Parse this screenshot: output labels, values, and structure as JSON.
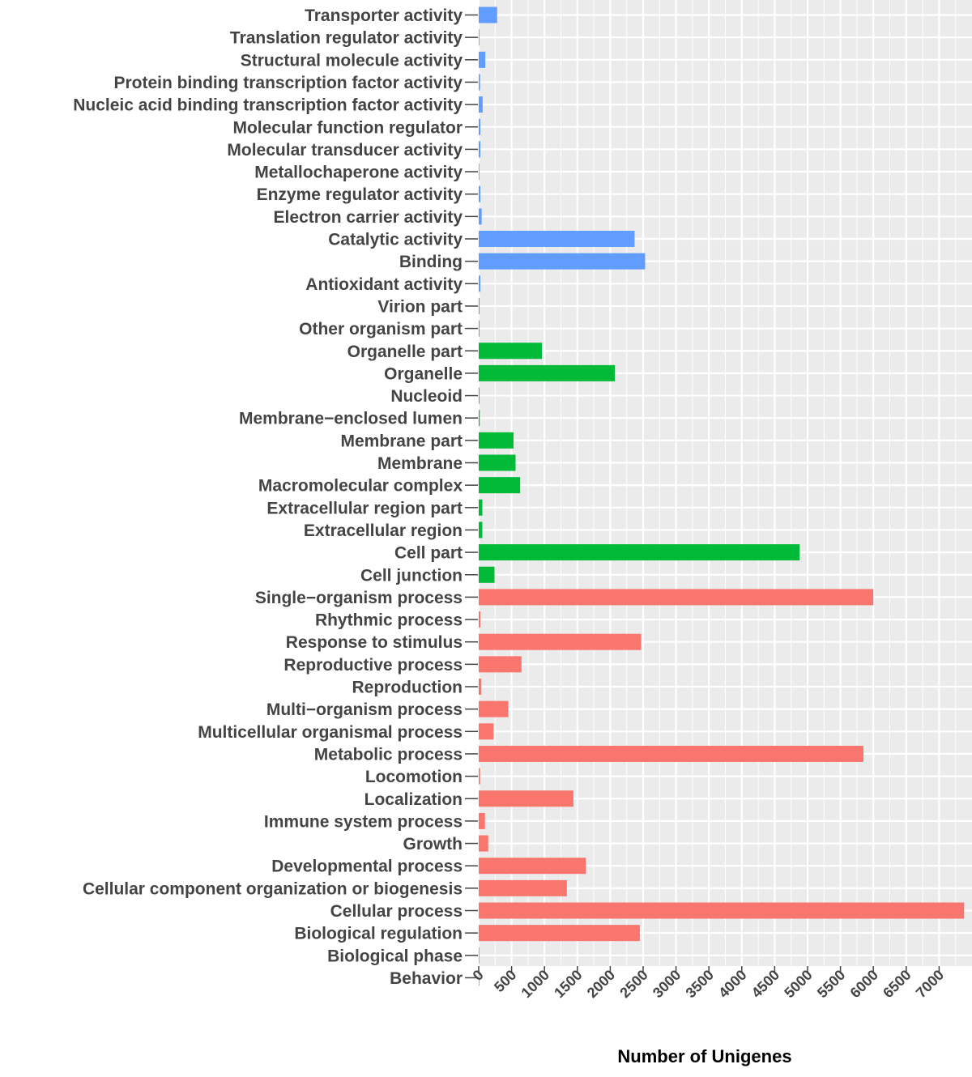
{
  "chart_data": {
    "type": "bar",
    "orientation": "horizontal",
    "title": "",
    "xlabel": "Number of Unigenes",
    "ylabel": "",
    "xlim": [
      0,
      7400
    ],
    "xticks": [
      0,
      500,
      1000,
      1500,
      2000,
      2500,
      3000,
      3500,
      4000,
      4500,
      5000,
      5500,
      6000,
      6500,
      7000
    ],
    "grid": true,
    "legend": "none",
    "group_colors": {
      "molecular_function": "#619cff",
      "cellular_component": "#00ba38",
      "biological_process": "#f8766d"
    },
    "categories": [
      "Transporter activity",
      "Translation regulator activity",
      "Structural molecule activity",
      "Protein binding transcription factor activity",
      "Nucleic acid binding transcription factor activity",
      "Molecular function regulator",
      "Molecular transducer activity",
      "Metallochaperone activity",
      "Enzyme regulator activity",
      "Electron carrier activity",
      "Catalytic activity",
      "Binding",
      "Antioxidant activity",
      "Virion part",
      "Other organism part",
      "Organelle part",
      "Organelle",
      "Nucleoid",
      "Membrane−enclosed lumen",
      "Membrane part",
      "Membrane",
      "Macromolecular complex",
      "Extracellular region part",
      "Extracellular region",
      "Cell part",
      "Cell junction",
      "Single−organism process",
      "Rhythmic process",
      "Response to stimulus",
      "Reproductive process",
      "Reproduction",
      "Multi−organism process",
      "Multicellular organismal process",
      "Metabolic process",
      "Locomotion",
      "Localization",
      "Immune system process",
      "Growth",
      "Developmental process",
      "Cellular component organization or biogenesis",
      "Cellular process",
      "Biological regulation",
      "Biological phase",
      "Behavior"
    ],
    "values": [
      280,
      8,
      100,
      20,
      60,
      25,
      25,
      3,
      25,
      45,
      2370,
      2530,
      25,
      5,
      5,
      960,
      2070,
      10,
      15,
      530,
      560,
      630,
      55,
      55,
      4880,
      240,
      6000,
      25,
      2470,
      650,
      40,
      450,
      225,
      5850,
      20,
      1440,
      95,
      145,
      1630,
      1340,
      7380,
      2450,
      3,
      3
    ],
    "groups": [
      "molecular_function",
      "molecular_function",
      "molecular_function",
      "molecular_function",
      "molecular_function",
      "molecular_function",
      "molecular_function",
      "molecular_function",
      "molecular_function",
      "molecular_function",
      "molecular_function",
      "molecular_function",
      "molecular_function",
      "cellular_component",
      "cellular_component",
      "cellular_component",
      "cellular_component",
      "cellular_component",
      "cellular_component",
      "cellular_component",
      "cellular_component",
      "cellular_component",
      "cellular_component",
      "cellular_component",
      "cellular_component",
      "cellular_component",
      "biological_process",
      "biological_process",
      "biological_process",
      "biological_process",
      "biological_process",
      "biological_process",
      "biological_process",
      "biological_process",
      "biological_process",
      "biological_process",
      "biological_process",
      "biological_process",
      "biological_process",
      "biological_process",
      "biological_process",
      "biological_process",
      "biological_process",
      "biological_process"
    ]
  }
}
